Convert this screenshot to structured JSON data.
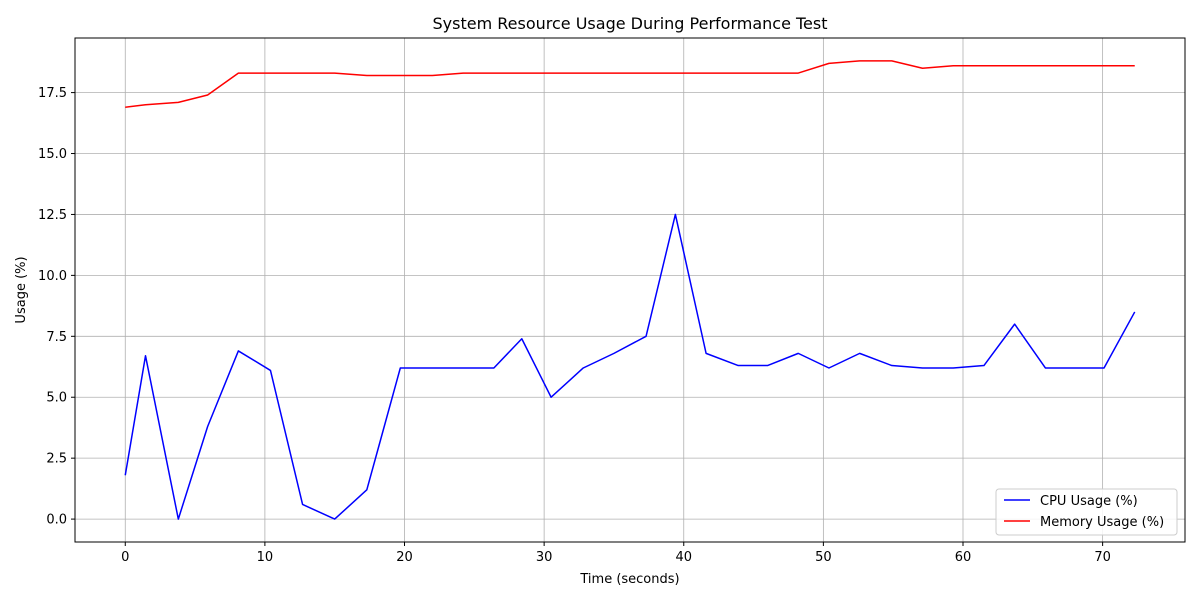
{
  "chart_data": {
    "type": "line",
    "title": "System Resource Usage During Performance Test",
    "xlabel": "Time (seconds)",
    "ylabel": "Usage (%)",
    "xlim": [
      -3.6,
      75.9
    ],
    "ylim": [
      -0.94,
      19.74
    ],
    "xticks": [
      0,
      10,
      20,
      30,
      40,
      50,
      60,
      70
    ],
    "yticks": [
      0.0,
      2.5,
      5.0,
      7.5,
      10.0,
      12.5,
      15.0,
      17.5
    ],
    "ytick_labels": [
      "0.0",
      "2.5",
      "5.0",
      "7.5",
      "10.0",
      "12.5",
      "15.0",
      "17.5"
    ],
    "grid": true,
    "legend_position": "lower-right",
    "x": [
      0,
      1.45,
      3.8,
      5.9,
      8.1,
      10.4,
      12.7,
      15.0,
      17.3,
      19.7,
      22.0,
      24.2,
      26.4,
      28.4,
      30.5,
      32.8,
      35.0,
      37.3,
      39.4,
      41.6,
      43.9,
      46.0,
      48.2,
      50.4,
      52.6,
      54.9,
      57.1,
      59.3,
      61.5,
      63.7,
      65.9,
      68.1,
      70.1,
      72.3
    ],
    "series": [
      {
        "name": "CPU Usage (%)",
        "color": "#0000ff",
        "values": [
          1.8,
          6.7,
          0.0,
          3.8,
          6.9,
          6.1,
          0.6,
          0.0,
          1.2,
          6.2,
          6.2,
          6.2,
          6.2,
          7.4,
          5.0,
          6.2,
          6.8,
          7.5,
          12.5,
          6.8,
          6.3,
          6.3,
          6.8,
          6.2,
          6.8,
          6.3,
          6.2,
          6.2,
          6.3,
          8.0,
          6.2,
          6.2,
          6.2,
          8.5
        ]
      },
      {
        "name": "Memory Usage (%)",
        "color": "#ff0000",
        "values": [
          16.9,
          17.0,
          17.1,
          17.4,
          18.3,
          18.3,
          18.3,
          18.3,
          18.2,
          18.2,
          18.2,
          18.3,
          18.3,
          18.3,
          18.3,
          18.3,
          18.3,
          18.3,
          18.3,
          18.3,
          18.3,
          18.3,
          18.3,
          18.7,
          18.8,
          18.8,
          18.5,
          18.6,
          18.6,
          18.6,
          18.6,
          18.6,
          18.6,
          18.6
        ]
      }
    ]
  }
}
